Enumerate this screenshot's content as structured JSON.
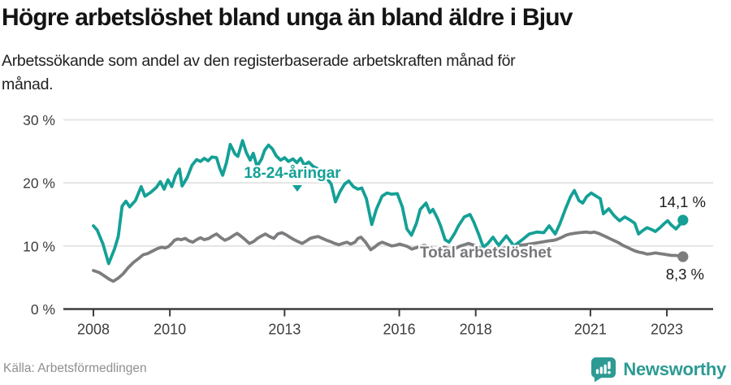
{
  "chart_data": {
    "type": "line",
    "title": "Högre arbetslöshet bland unga än bland äldre i Bjuv",
    "subtitle_lines": [
      "Arbetssökande som andel av den registerbaserade arbetskraften månad för",
      "månad."
    ],
    "unit": "%",
    "grid": "horizontal",
    "ylim": [
      0,
      30
    ],
    "xlim": [
      2007.8,
      2023.6
    ],
    "y_ticks": [
      {
        "value": 0,
        "label": "0 %"
      },
      {
        "value": 10,
        "label": "10 %"
      },
      {
        "value": 20,
        "label": "20 %"
      },
      {
        "value": 30,
        "label": "30 %"
      }
    ],
    "x_ticks": [
      {
        "value": 2008,
        "label": "2008"
      },
      {
        "value": 2010,
        "label": "2010"
      },
      {
        "value": 2013,
        "label": "2013"
      },
      {
        "value": 2016,
        "label": "2016"
      },
      {
        "value": 2018,
        "label": "2018"
      },
      {
        "value": 2021,
        "label": "2021"
      },
      {
        "value": 2023,
        "label": "2023"
      }
    ],
    "series": [
      {
        "id": "youth",
        "name": "18-24-åringar",
        "color": "#14a096",
        "end_label": "14,1 %",
        "last_value": 14.1,
        "points": [
          [
            2008.0,
            13.2
          ],
          [
            2008.1,
            12.5
          ],
          [
            2008.25,
            10.3
          ],
          [
            2008.4,
            7.2
          ],
          [
            2008.55,
            9.5
          ],
          [
            2008.65,
            11.5
          ],
          [
            2008.75,
            16.3
          ],
          [
            2008.85,
            17.1
          ],
          [
            2008.95,
            16.2
          ],
          [
            2009.1,
            17.2
          ],
          [
            2009.25,
            19.4
          ],
          [
            2009.35,
            17.9
          ],
          [
            2009.5,
            18.5
          ],
          [
            2009.65,
            19.3
          ],
          [
            2009.75,
            20.2
          ],
          [
            2009.85,
            19.0
          ],
          [
            2009.95,
            20.5
          ],
          [
            2010.05,
            19.4
          ],
          [
            2010.15,
            21.2
          ],
          [
            2010.25,
            22.2
          ],
          [
            2010.32,
            19.5
          ],
          [
            2010.45,
            20.8
          ],
          [
            2010.58,
            22.8
          ],
          [
            2010.7,
            23.7
          ],
          [
            2010.8,
            23.4
          ],
          [
            2010.9,
            23.9
          ],
          [
            2011.0,
            23.5
          ],
          [
            2011.1,
            24.1
          ],
          [
            2011.22,
            24.0
          ],
          [
            2011.3,
            22.4
          ],
          [
            2011.38,
            21.2
          ],
          [
            2011.48,
            23.2
          ],
          [
            2011.58,
            26.1
          ],
          [
            2011.7,
            24.6
          ],
          [
            2011.78,
            24.2
          ],
          [
            2011.9,
            26.7
          ],
          [
            2012.0,
            24.8
          ],
          [
            2012.1,
            23.6
          ],
          [
            2012.18,
            24.7
          ],
          [
            2012.28,
            22.6
          ],
          [
            2012.4,
            23.8
          ],
          [
            2012.48,
            25.2
          ],
          [
            2012.58,
            26.0
          ],
          [
            2012.68,
            25.4
          ],
          [
            2012.78,
            24.3
          ],
          [
            2012.9,
            23.6
          ],
          [
            2013.0,
            24.0
          ],
          [
            2013.1,
            23.4
          ],
          [
            2013.22,
            23.8
          ],
          [
            2013.32,
            23.2
          ],
          [
            2013.42,
            23.9
          ],
          [
            2013.52,
            22.8
          ],
          [
            2013.63,
            23.3
          ],
          [
            2013.75,
            22.6
          ],
          [
            2013.85,
            22.3
          ],
          [
            2014.0,
            21.6
          ],
          [
            2014.12,
            20.6
          ],
          [
            2014.22,
            19.8
          ],
          [
            2014.33,
            17.0
          ],
          [
            2014.45,
            18.6
          ],
          [
            2014.57,
            19.8
          ],
          [
            2014.68,
            20.3
          ],
          [
            2014.8,
            19.4
          ],
          [
            2014.92,
            19.0
          ],
          [
            2015.02,
            19.2
          ],
          [
            2015.14,
            17.5
          ],
          [
            2015.28,
            13.4
          ],
          [
            2015.4,
            15.8
          ],
          [
            2015.55,
            17.9
          ],
          [
            2015.68,
            18.4
          ],
          [
            2015.8,
            18.2
          ],
          [
            2015.95,
            18.3
          ],
          [
            2016.08,
            16.2
          ],
          [
            2016.2,
            12.7
          ],
          [
            2016.32,
            11.7
          ],
          [
            2016.45,
            13.6
          ],
          [
            2016.55,
            15.8
          ],
          [
            2016.7,
            16.8
          ],
          [
            2016.8,
            15.3
          ],
          [
            2016.88,
            15.8
          ],
          [
            2017.0,
            14.4
          ],
          [
            2017.08,
            13.2
          ],
          [
            2017.2,
            11.0
          ],
          [
            2017.3,
            10.6
          ],
          [
            2017.45,
            12.0
          ],
          [
            2017.55,
            13.2
          ],
          [
            2017.7,
            14.6
          ],
          [
            2017.85,
            15.0
          ],
          [
            2017.95,
            13.8
          ],
          [
            2018.08,
            11.8
          ],
          [
            2018.2,
            9.8
          ],
          [
            2018.32,
            10.4
          ],
          [
            2018.45,
            11.4
          ],
          [
            2018.6,
            10.1
          ],
          [
            2018.8,
            11.6
          ],
          [
            2019.0,
            10.0
          ],
          [
            2019.2,
            10.9
          ],
          [
            2019.4,
            11.9
          ],
          [
            2019.6,
            12.2
          ],
          [
            2019.78,
            12.1
          ],
          [
            2019.92,
            13.2
          ],
          [
            2020.08,
            11.9
          ],
          [
            2020.2,
            13.5
          ],
          [
            2020.35,
            15.9
          ],
          [
            2020.48,
            17.8
          ],
          [
            2020.58,
            18.8
          ],
          [
            2020.7,
            17.2
          ],
          [
            2020.8,
            16.8
          ],
          [
            2020.9,
            17.8
          ],
          [
            2021.02,
            18.4
          ],
          [
            2021.15,
            17.9
          ],
          [
            2021.26,
            17.5
          ],
          [
            2021.34,
            15.1
          ],
          [
            2021.48,
            15.9
          ],
          [
            2021.62,
            14.8
          ],
          [
            2021.76,
            14.0
          ],
          [
            2021.9,
            14.6
          ],
          [
            2022.04,
            14.1
          ],
          [
            2022.16,
            13.6
          ],
          [
            2022.26,
            11.9
          ],
          [
            2022.36,
            12.4
          ],
          [
            2022.48,
            12.9
          ],
          [
            2022.6,
            12.6
          ],
          [
            2022.7,
            12.3
          ],
          [
            2022.82,
            12.9
          ],
          [
            2022.94,
            13.6
          ],
          [
            2023.02,
            14.0
          ],
          [
            2023.12,
            13.3
          ],
          [
            2023.24,
            12.7
          ],
          [
            2023.34,
            13.4
          ],
          [
            2023.42,
            14.1
          ]
        ]
      },
      {
        "id": "total",
        "name": "Total arbetslöshet",
        "color": "#7d7d80",
        "end_label": "8,3 %",
        "last_value": 8.3,
        "points": [
          [
            2008.0,
            6.1
          ],
          [
            2008.15,
            5.8
          ],
          [
            2008.3,
            5.2
          ],
          [
            2008.42,
            4.7
          ],
          [
            2008.52,
            4.4
          ],
          [
            2008.65,
            4.9
          ],
          [
            2008.78,
            5.6
          ],
          [
            2008.9,
            6.5
          ],
          [
            2009.05,
            7.4
          ],
          [
            2009.18,
            8.0
          ],
          [
            2009.3,
            8.6
          ],
          [
            2009.42,
            8.8
          ],
          [
            2009.55,
            9.2
          ],
          [
            2009.68,
            9.6
          ],
          [
            2009.78,
            9.8
          ],
          [
            2009.88,
            9.7
          ],
          [
            2009.96,
            9.9
          ],
          [
            2010.05,
            10.4
          ],
          [
            2010.12,
            10.9
          ],
          [
            2010.2,
            11.1
          ],
          [
            2010.3,
            11.0
          ],
          [
            2010.4,
            11.2
          ],
          [
            2010.5,
            10.8
          ],
          [
            2010.6,
            10.6
          ],
          [
            2010.7,
            11.0
          ],
          [
            2010.8,
            11.3
          ],
          [
            2010.9,
            11.0
          ],
          [
            2011.02,
            11.2
          ],
          [
            2011.12,
            11.6
          ],
          [
            2011.22,
            11.9
          ],
          [
            2011.34,
            11.3
          ],
          [
            2011.44,
            10.9
          ],
          [
            2011.55,
            11.2
          ],
          [
            2011.65,
            11.6
          ],
          [
            2011.76,
            12.0
          ],
          [
            2011.87,
            11.5
          ],
          [
            2011.97,
            11.0
          ],
          [
            2012.08,
            10.4
          ],
          [
            2012.19,
            10.7
          ],
          [
            2012.29,
            11.2
          ],
          [
            2012.4,
            11.6
          ],
          [
            2012.5,
            11.9
          ],
          [
            2012.61,
            11.5
          ],
          [
            2012.72,
            11.2
          ],
          [
            2012.82,
            11.9
          ],
          [
            2012.93,
            12.1
          ],
          [
            2013.03,
            11.8
          ],
          [
            2013.14,
            11.4
          ],
          [
            2013.25,
            11.0
          ],
          [
            2013.35,
            10.7
          ],
          [
            2013.46,
            10.4
          ],
          [
            2013.57,
            10.8
          ],
          [
            2013.67,
            11.2
          ],
          [
            2013.78,
            11.4
          ],
          [
            2013.88,
            11.5
          ],
          [
            2013.99,
            11.2
          ],
          [
            2014.1,
            10.9
          ],
          [
            2014.2,
            10.7
          ],
          [
            2014.31,
            10.4
          ],
          [
            2014.42,
            10.2
          ],
          [
            2014.52,
            10.4
          ],
          [
            2014.63,
            10.6
          ],
          [
            2014.73,
            10.3
          ],
          [
            2014.84,
            10.6
          ],
          [
            2014.92,
            11.2
          ],
          [
            2015.0,
            11.4
          ],
          [
            2015.12,
            10.6
          ],
          [
            2015.25,
            9.4
          ],
          [
            2015.35,
            9.8
          ],
          [
            2015.45,
            10.3
          ],
          [
            2015.55,
            10.6
          ],
          [
            2015.68,
            10.3
          ],
          [
            2015.8,
            10.0
          ],
          [
            2015.9,
            10.1
          ],
          [
            2016.01,
            10.3
          ],
          [
            2016.12,
            10.1
          ],
          [
            2016.22,
            9.9
          ],
          [
            2016.33,
            9.5
          ],
          [
            2016.43,
            9.7
          ],
          [
            2016.54,
            9.9
          ],
          [
            2016.65,
            10.1
          ],
          [
            2016.75,
            9.9
          ],
          [
            2016.86,
            9.6
          ],
          [
            2016.96,
            9.4
          ],
          [
            2017.07,
            9.6
          ],
          [
            2017.18,
            9.8
          ],
          [
            2017.28,
            9.6
          ],
          [
            2017.39,
            9.4
          ],
          [
            2017.5,
            9.7
          ],
          [
            2017.6,
            10.0
          ],
          [
            2017.71,
            10.2
          ],
          [
            2017.81,
            10.4
          ],
          [
            2017.92,
            10.2
          ],
          [
            2018.03,
            9.9
          ],
          [
            2018.13,
            9.6
          ],
          [
            2018.24,
            9.4
          ],
          [
            2018.35,
            9.3
          ],
          [
            2018.45,
            9.4
          ],
          [
            2018.56,
            9.6
          ],
          [
            2018.66,
            9.5
          ],
          [
            2018.77,
            9.7
          ],
          [
            2018.88,
            9.9
          ],
          [
            2018.98,
            10.0
          ],
          [
            2019.1,
            10.1
          ],
          [
            2019.3,
            10.2
          ],
          [
            2019.5,
            10.4
          ],
          [
            2019.7,
            10.6
          ],
          [
            2019.9,
            10.8
          ],
          [
            2020.05,
            10.9
          ],
          [
            2020.15,
            11.1
          ],
          [
            2020.26,
            11.4
          ],
          [
            2020.36,
            11.7
          ],
          [
            2020.47,
            11.9
          ],
          [
            2020.58,
            12.0
          ],
          [
            2020.7,
            12.1
          ],
          [
            2020.9,
            12.2
          ],
          [
            2021.0,
            12.1
          ],
          [
            2021.1,
            12.2
          ],
          [
            2021.21,
            12.0
          ],
          [
            2021.32,
            11.7
          ],
          [
            2021.43,
            11.4
          ],
          [
            2021.53,
            11.1
          ],
          [
            2021.64,
            10.8
          ],
          [
            2021.74,
            10.5
          ],
          [
            2021.85,
            10.1
          ],
          [
            2021.96,
            9.8
          ],
          [
            2022.06,
            9.5
          ],
          [
            2022.17,
            9.2
          ],
          [
            2022.28,
            9.0
          ],
          [
            2022.38,
            8.9
          ],
          [
            2022.49,
            8.7
          ],
          [
            2022.6,
            8.8
          ],
          [
            2022.7,
            8.9
          ],
          [
            2022.81,
            8.8
          ],
          [
            2022.91,
            8.7
          ],
          [
            2023.02,
            8.6
          ],
          [
            2023.13,
            8.5
          ],
          [
            2023.23,
            8.5
          ],
          [
            2023.34,
            8.4
          ],
          [
            2023.42,
            8.3
          ]
        ]
      }
    ],
    "legend_position": "inline-labels"
  },
  "footer": {
    "source": "Källa: Arbetsförmedlingen",
    "brand": "Newsworthy"
  },
  "colors": {
    "accent_teal": "#14a096",
    "line_gray": "#7d7d80",
    "grid": "#e4e4e4",
    "axis": "#3c3c3c",
    "tick_text": "#3d3d3d",
    "end_label_text": "#1b1b1b",
    "source_text": "#8f8f8f",
    "brand_teal": "#2d9a94"
  }
}
